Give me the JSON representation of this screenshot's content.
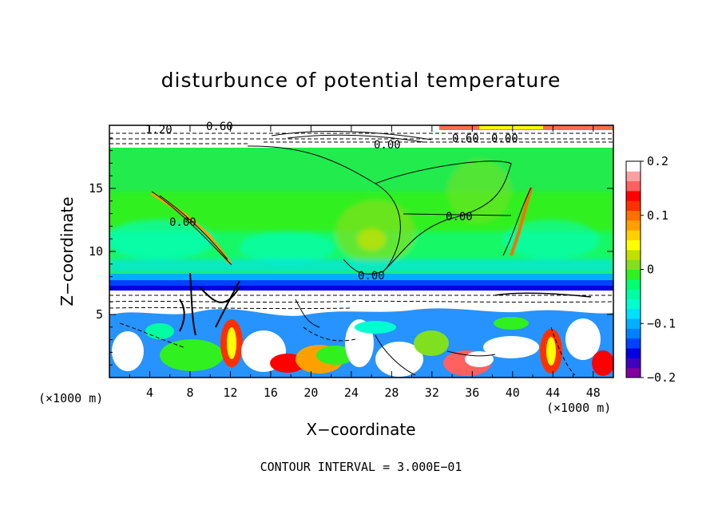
{
  "chart_data": {
    "type": "heatmap",
    "title": "disturbunce of potential temperature",
    "xlabel": "X−coordinate",
    "ylabel": "Z−coordinate",
    "x_unit_label": "(×1000 m)",
    "z_unit_label": "(×1000 m)",
    "xlim": [
      0,
      50
    ],
    "ylim": [
      0,
      20
    ],
    "x_ticks": [
      4,
      8,
      12,
      16,
      20,
      24,
      28,
      32,
      36,
      40,
      44,
      48
    ],
    "y_ticks": [
      5,
      10,
      15
    ],
    "colorbar": {
      "range": [
        -0.2,
        0.2
      ],
      "ticks": [
        0.2,
        0.1,
        0,
        -0.1,
        -0.2
      ],
      "tick_labels": [
        "0.2",
        "0.1",
        "0",
        "−0.1",
        "−0.2"
      ],
      "colors": [
        "#8000a0",
        "#4000c0",
        "#0000e0",
        "#0040ff",
        "#0080ff",
        "#00b0ff",
        "#00e0ff",
        "#00ffd0",
        "#00ffa0",
        "#00ff70",
        "#30f020",
        "#80e020",
        "#c0e000",
        "#ffff00",
        "#ffd000",
        "#ffa000",
        "#ff7000",
        "#ff3000",
        "#ff0000",
        "#ff6060",
        "#ffa0a0",
        "#ffffff"
      ]
    },
    "contour_labels": [
      "1.20",
      "0.60",
      "0.00",
      "0.00",
      "0.00",
      "0.00",
      "0.60",
      "0.00"
    ],
    "contour_interval": "CONTOUR INTERVAL = 3.000E−01"
  }
}
